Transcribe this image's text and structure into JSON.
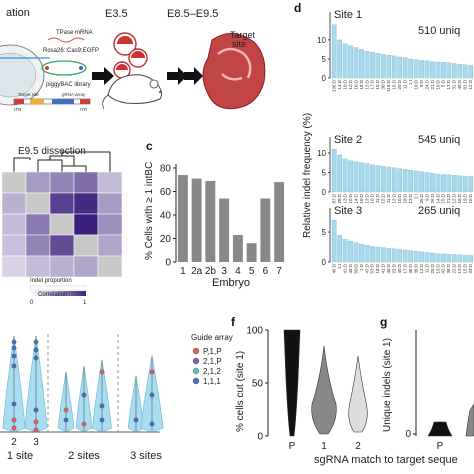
{
  "panel_a": {
    "title_fragment": "ation",
    "stages": [
      "E3.5",
      "E8.5–E9.5"
    ],
    "tpase": "TPase mRNA",
    "rosa": "Rosa26::Cas9;EGFP",
    "library": "piggyBAC library",
    "target_site": "Target site",
    "grna_array": "gRNA array",
    "itr_left": "ITR",
    "itr_right": "ITR",
    "organ_label": "Target\nsite"
  },
  "panel_b": {
    "title": "E9.5 dissection",
    "heatmap": [
      [
        0.25,
        0.45,
        0.55,
        0.65,
        0.3
      ],
      [
        0.35,
        0.7,
        0.85,
        0.95,
        0.45
      ],
      [
        0.3,
        0.6,
        0.9,
        1.0,
        0.5
      ],
      [
        0.28,
        0.55,
        0.8,
        0.85,
        0.4
      ],
      [
        0.2,
        0.3,
        0.35,
        0.4,
        0.25
      ]
    ],
    "legend_title": "Indel proportion",
    "colorbar_label": "Correlation",
    "colorbar_min": "0",
    "colorbar_max": "1",
    "colors": {
      "low": "#ffffff",
      "high": "#3b1f7a",
      "grey": "#c8c8c8"
    }
  },
  "chart_data": [
    {
      "type": "bar",
      "panel": "c",
      "categories": [
        "1",
        "2a",
        "2b",
        "3",
        "4",
        "5",
        "6",
        "7"
      ],
      "values": [
        74,
        71,
        69,
        54,
        23,
        16,
        54,
        68
      ],
      "xlabel": "Embryo",
      "ylabel": "% Cells with ≥ 1 intBC",
      "yticks": [
        0,
        20,
        40,
        60,
        80
      ],
      "ylim": [
        0,
        80
      ],
      "bar_color": "#888888"
    },
    {
      "type": "bar",
      "panel": "d",
      "ylabel": "Relative indel frequency (%)",
      "bar_color": "#a8d8ec",
      "sites": [
        {
          "name": "Site 1",
          "unique": "510 uniq",
          "yticks": [
            "0",
            "5",
            "10"
          ],
          "values": [
            14,
            10,
            9,
            8.5,
            8,
            7.5,
            7,
            6.8,
            6.5,
            6.2,
            6,
            5.8,
            5.5,
            5.3,
            5,
            4.8,
            4.6,
            4.5,
            4.3,
            4.2,
            4.1,
            4,
            3.8,
            3.6,
            3.5,
            3.3
          ],
          "labels": [
            "136:D",
            "14:D",
            "10:D",
            "12:D",
            "10:D",
            "18:D",
            "13:D",
            "17:D",
            "15:D",
            "30:D",
            "119:D",
            "15:D",
            "20:D",
            "11:D",
            "1:I",
            "10:D",
            "9:D",
            "24:D",
            "21:D",
            "10:D",
            "6:D",
            "17:D",
            "31:D",
            "40:D",
            "81:D",
            "12:D"
          ]
        },
        {
          "name": "Site 2",
          "unique": "545 uniq",
          "yticks": [
            "0",
            "5",
            "10"
          ],
          "values": [
            11,
            9.5,
            8.5,
            8,
            7.8,
            7.5,
            7.3,
            7,
            6.8,
            6.6,
            6.4,
            6.2,
            6,
            5.8,
            5.6,
            5.4,
            5.2,
            5,
            4.8,
            4.6,
            4.5,
            4.4,
            4.3,
            4.2,
            4.1,
            4
          ],
          "labels": [
            "87:D",
            "28:D",
            "13:D",
            "10:D",
            "14:D",
            "10:D",
            "13:D",
            "16:D",
            "11:D",
            "15:D",
            "11:D",
            "12:D",
            "10:D",
            "18:D",
            "13:D",
            "1:I",
            "25:D",
            "9:D",
            "26:D",
            "14:D",
            "15:D",
            "21:D",
            "12:D",
            "16:D",
            "19:D",
            "10:D"
          ]
        },
        {
          "name": "Site 3",
          "unique": "265 uniq",
          "yticks": [
            "0",
            "5"
          ],
          "values": [
            7,
            4.5,
            3.8,
            3.5,
            3.2,
            3,
            2.8,
            2.6,
            2.5,
            2.4,
            2.3,
            2.2,
            2.1,
            2,
            1.9,
            1.8,
            1.7,
            1.6,
            1.5,
            1.4,
            1.35,
            1.3,
            1.25,
            1.2,
            1.15,
            1.1
          ],
          "labels": [
            "46:D",
            "1:I",
            "41:D",
            "48:D",
            "50:D",
            "1:D",
            "47:D",
            "53:D",
            "18:D",
            "41:D",
            "46:D",
            "23:D",
            "40:D",
            "17:D",
            "36:D",
            "30:D",
            "13:D",
            "11:D",
            "25:D",
            "19:D",
            "42:D",
            "38:D",
            "22:D",
            "19:D",
            "15:D",
            "33:D"
          ]
        }
      ]
    },
    {
      "type": "scatter",
      "panel": "e",
      "groups": [
        "1 site",
        "2 sites",
        "3 sites"
      ],
      "xticks": [
        "2",
        "3"
      ],
      "legend_title": "Guide array",
      "legend": [
        {
          "name": "P,1,P",
          "color": "#e06060"
        },
        {
          "name": "2,1,P",
          "color": "#7d64a8"
        },
        {
          "name": "2,1,2",
          "color": "#5fbfb0"
        },
        {
          "name": "1,1,1",
          "color": "#4a6cc0"
        }
      ]
    },
    {
      "type": "violin",
      "panel": "f",
      "categories": [
        "P",
        "1",
        "2"
      ],
      "ylabel": "% cells cut (site 1)",
      "yticks": [
        "0",
        "50",
        "100"
      ],
      "colors": [
        "#111111",
        "#888888",
        "#dddddd"
      ],
      "xlabel": "sgRNA match to target seque"
    },
    {
      "type": "violin",
      "panel": "g",
      "categories": [
        "P",
        "1"
      ],
      "ylabel": "Unique indels (site 1)",
      "yticks": [
        "0"
      ],
      "colors": [
        "#111111",
        "#888888"
      ]
    }
  ],
  "letters": {
    "c": "c",
    "d": "d",
    "f": "f",
    "g": "g"
  }
}
